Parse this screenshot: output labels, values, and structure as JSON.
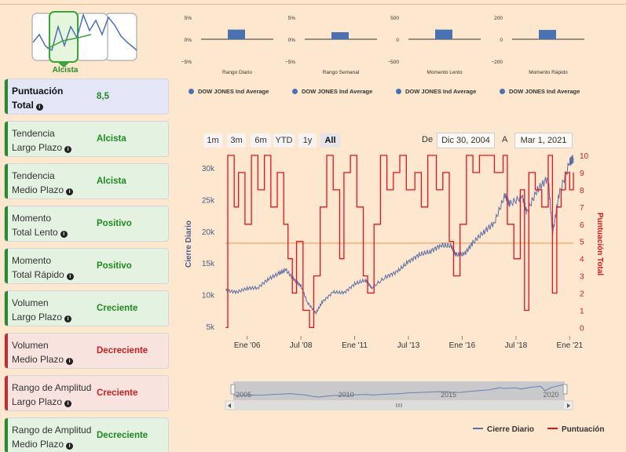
{
  "trend": {
    "label": "Alcista",
    "icon": "trend-cards-icon"
  },
  "panels": [
    {
      "line1": "Puntuación",
      "line2": "Total",
      "value": "8,5",
      "style": "blue"
    },
    {
      "line1": "Tendencia",
      "line2": "Largo Plazo",
      "value": "Alcista",
      "style": "green"
    },
    {
      "line1": "Tendencia",
      "line2": "Medio Plazo",
      "value": "Alcista",
      "style": "green"
    },
    {
      "line1": "Momento",
      "line2": "Total Lento",
      "value": "Positivo",
      "style": "green"
    },
    {
      "line1": "Momento",
      "line2": "Total Rápido",
      "value": "Positivo",
      "style": "green"
    },
    {
      "line1": "Volumen",
      "line2": "Largo Plazo",
      "value": "Creciente",
      "style": "green"
    },
    {
      "line1": "Volumen",
      "line2": "Medio Plazo",
      "value": "Decreciente",
      "style": "red"
    },
    {
      "line1": "Rango de Amplitud",
      "line2": "Largo Plazo",
      "value": "Creciente",
      "style": "red"
    },
    {
      "line1": "Rango de Amplitud",
      "line2": "Medio Plazo",
      "value": "Decreciente",
      "style": "green"
    }
  ],
  "mini_charts": [
    {
      "title": "Rango Diario",
      "ticks": [
        "5%",
        "0%",
        "−5%"
      ],
      "ylim": [
        -5,
        5
      ],
      "value": 2.2,
      "legend": "DOW JONES Ind Average"
    },
    {
      "title": "Rango Semanal",
      "ticks": [
        "5%",
        "0%",
        "−5%"
      ],
      "ylim": [
        -5,
        5
      ],
      "value": 1.6,
      "legend": "DOW JONES Ind Average"
    },
    {
      "title": "Momento Lento",
      "ticks": [
        "500",
        "0",
        "−500"
      ],
      "ylim": [
        -500,
        500
      ],
      "value": 220,
      "legend": "DOW JONES Ind Average"
    },
    {
      "title": "Momento Rápido",
      "ticks": [
        "200",
        "0",
        "−200"
      ],
      "ylim": [
        -200,
        200
      ],
      "value": 85,
      "legend": "DOW JONES Ind Average"
    }
  ],
  "range_selector": {
    "buttons": [
      "1m",
      "3m",
      "6m",
      "YTD",
      "1y",
      "All"
    ],
    "active": "All",
    "from_label": "De",
    "from_value": "Dic 30, 2004",
    "to_label": "A",
    "to_value": "Mar 1, 2021"
  },
  "chart_data": {
    "type": "line",
    "x_range": [
      2004.99,
      2021.17
    ],
    "x_ticks": [
      {
        "x": 2006.0,
        "label": "Ene '06"
      },
      {
        "x": 2008.5,
        "label": "Jul '08"
      },
      {
        "x": 2011.0,
        "label": "Ene '11"
      },
      {
        "x": 2013.5,
        "label": "Jul '13"
      },
      {
        "x": 2016.0,
        "label": "Ene '16"
      },
      {
        "x": 2018.5,
        "label": "Jul '18"
      },
      {
        "x": 2021.0,
        "label": "Ene '21"
      }
    ],
    "y_left": {
      "label": "Cierre Diario",
      "ticks": [
        "30k",
        "25k",
        "20k",
        "15k",
        "10k",
        "5k"
      ],
      "tick_values": [
        30000,
        25000,
        20000,
        15000,
        10000,
        5000
      ],
      "ylim": [
        4000,
        32000
      ]
    },
    "y_right": {
      "label": "Puntuación Total",
      "ticks": [
        "10",
        "9",
        "8",
        "7",
        "6",
        "5",
        "4",
        "3",
        "2",
        "1",
        "0"
      ],
      "ylim": [
        -0.3,
        10
      ]
    },
    "reference_line": {
      "series": "Puntuación",
      "value": 4.9
    },
    "series": [
      {
        "name": "Cierre Diario",
        "color": "#5a6fa8",
        "axis": "left",
        "x": [
          2005.0,
          2005.5,
          2006.0,
          2006.5,
          2007.0,
          2007.5,
          2007.8,
          2008.2,
          2008.5,
          2008.8,
          2009.2,
          2009.5,
          2010.0,
          2010.5,
          2011.0,
          2011.5,
          2011.8,
          2012.5,
          2013.0,
          2013.5,
          2014.0,
          2014.5,
          2015.0,
          2015.5,
          2015.7,
          2016.1,
          2016.5,
          2017.0,
          2017.5,
          2018.0,
          2018.2,
          2018.8,
          2019.0,
          2019.5,
          2020.0,
          2020.2,
          2020.5,
          2021.0,
          2021.17
        ],
        "values": [
          10700,
          10400,
          11000,
          11100,
          12500,
          13400,
          13900,
          12300,
          11400,
          8800,
          7100,
          8900,
          10400,
          10300,
          11700,
          12300,
          11100,
          12900,
          13700,
          15200,
          16300,
          16800,
          17800,
          17700,
          16300,
          16400,
          18200,
          19900,
          21400,
          25800,
          24300,
          25500,
          23000,
          26600,
          28500,
          19600,
          25800,
          30900,
          31500
        ]
      },
      {
        "name": "Puntuación",
        "color": "#e8101e",
        "axis": "right",
        "x": [
          2005.0,
          2005.1,
          2005.4,
          2005.6,
          2005.9,
          2006.2,
          2006.5,
          2006.8,
          2007.1,
          2007.4,
          2007.7,
          2007.9,
          2008.1,
          2008.3,
          2008.6,
          2008.9,
          2009.1,
          2009.4,
          2009.7,
          2010.0,
          2010.3,
          2010.5,
          2010.8,
          2011.1,
          2011.4,
          2011.6,
          2011.9,
          2012.2,
          2012.5,
          2012.8,
          2013.1,
          2013.4,
          2013.8,
          2014.1,
          2014.4,
          2014.8,
          2015.1,
          2015.4,
          2015.6,
          2015.9,
          2016.2,
          2016.5,
          2016.8,
          2017.1,
          2017.5,
          2017.9,
          2018.1,
          2018.4,
          2018.7,
          2018.9,
          2019.1,
          2019.4,
          2019.7,
          2020.0,
          2020.2,
          2020.4,
          2020.6,
          2020.8,
          2021.0,
          2021.17
        ],
        "values": [
          0,
          10,
          7,
          9,
          6,
          10,
          8,
          10,
          7,
          9,
          6,
          4,
          2,
          5,
          1,
          0,
          3,
          7,
          10,
          8,
          4,
          9,
          10,
          7,
          3,
          2,
          6,
          10,
          8,
          9,
          10,
          8,
          9,
          7,
          10,
          8,
          9,
          5,
          3,
          6,
          10,
          9,
          10,
          10,
          9,
          10,
          6,
          4,
          8,
          1,
          9,
          8,
          7,
          10,
          2,
          7,
          8,
          9,
          8,
          9
        ]
      }
    ],
    "navigator": {
      "ticks": [
        "2005",
        "2010",
        "2015",
        "2020"
      ],
      "tick_values": [
        2005,
        2010,
        2015,
        2020
      ]
    },
    "legend": [
      "Cierre Diario",
      "Puntuación"
    ]
  }
}
